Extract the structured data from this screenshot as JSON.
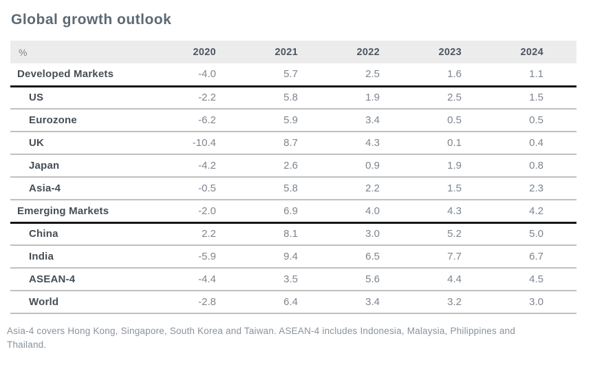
{
  "page": {
    "title": "Global growth outlook",
    "footnote": "Asia-4 covers Hong Kong, Singapore, South Korea and Taiwan. ASEAN-4 includes Indonesia, Malaysia, Philippines and Thailand."
  },
  "colors": {
    "title_text": "#5c6973",
    "header_bg": "#ececec",
    "header_year_text": "#4d5560",
    "row_label_text": "#454d55",
    "value_text": "#7d858e",
    "thin_separator": "#bfbfbf",
    "heavy_rule": "#151515",
    "footnote_text": "#8a929b"
  },
  "chart_data": {
    "type": "table",
    "title": "Global growth outlook",
    "unit": "%",
    "columns": [
      "%",
      "2020",
      "2021",
      "2022",
      "2023",
      "2024"
    ],
    "rows": [
      {
        "label": "Developed Markets",
        "level": "group",
        "values": [
          "-4.0",
          "5.7",
          "2.5",
          "1.6",
          "1.1"
        ]
      },
      {
        "label": "US",
        "level": "sub",
        "values": [
          "-2.2",
          "5.8",
          "1.9",
          "2.5",
          "1.5"
        ]
      },
      {
        "label": "Eurozone",
        "level": "sub",
        "values": [
          "-6.2",
          "5.9",
          "3.4",
          "0.5",
          "0.5"
        ]
      },
      {
        "label": "UK",
        "level": "sub",
        "values": [
          "-10.4",
          "8.7",
          "4.3",
          "0.1",
          "0.4"
        ]
      },
      {
        "label": "Japan",
        "level": "sub",
        "values": [
          "-4.2",
          "2.6",
          "0.9",
          "1.9",
          "0.8"
        ]
      },
      {
        "label": "Asia-4",
        "level": "sub",
        "values": [
          "-0.5",
          "5.8",
          "2.2",
          "1.5",
          "2.3"
        ]
      },
      {
        "label": "Emerging Markets",
        "level": "group",
        "values": [
          "-2.0",
          "6.9",
          "4.0",
          "4.3",
          "4.2"
        ]
      },
      {
        "label": "China",
        "level": "sub",
        "values": [
          "2.2",
          "8.1",
          "3.0",
          "5.2",
          "5.0"
        ]
      },
      {
        "label": "India",
        "level": "sub",
        "values": [
          "-5.9",
          "9.4",
          "6.5",
          "7.7",
          "6.7"
        ]
      },
      {
        "label": "ASEAN-4",
        "level": "sub",
        "values": [
          "-4.4",
          "3.5",
          "5.6",
          "4.4",
          "4.5"
        ]
      },
      {
        "label": "World",
        "level": "sub",
        "values": [
          "-2.8",
          "6.4",
          "3.4",
          "3.2",
          "3.0"
        ]
      }
    ]
  }
}
